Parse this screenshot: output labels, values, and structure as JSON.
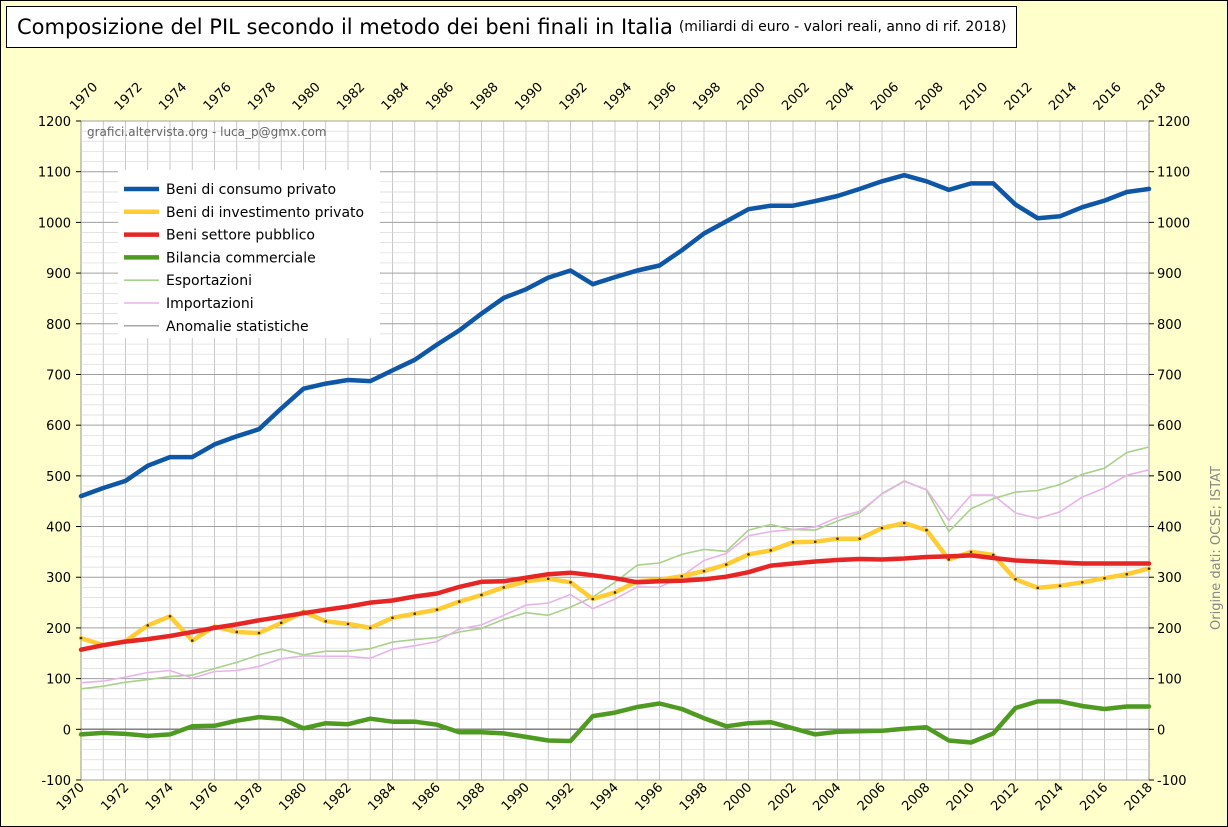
{
  "title": {
    "main": "Composizione del PIL secondo il metodo dei beni finali in Italia",
    "sub": "(miliardi di euro - valori reali, anno di rif. 2018)"
  },
  "watermark": "grafici.altervista.org - luca_p@gmx.com",
  "source": "Origine dati: OCSE; ISTAT",
  "chart_data": {
    "type": "line",
    "x": [
      1970,
      1971,
      1972,
      1973,
      1974,
      1975,
      1976,
      1977,
      1978,
      1979,
      1980,
      1981,
      1982,
      1983,
      1984,
      1985,
      1986,
      1987,
      1988,
      1989,
      1990,
      1991,
      1992,
      1993,
      1994,
      1995,
      1996,
      1997,
      1998,
      1999,
      2000,
      2001,
      2002,
      2003,
      2004,
      2005,
      2006,
      2007,
      2008,
      2009,
      2010,
      2011,
      2012,
      2013,
      2014,
      2015,
      2016,
      2017,
      2018
    ],
    "x_tick_labels": [
      "1970",
      "1972",
      "1974",
      "1976",
      "1978",
      "1980",
      "1982",
      "1984",
      "1986",
      "1988",
      "1990",
      "1992",
      "1994",
      "1996",
      "1998",
      "2000",
      "2002",
      "2004",
      "2006",
      "2008",
      "2010",
      "2012",
      "2014",
      "2016",
      "2018"
    ],
    "y_ticks": [
      -100,
      0,
      100,
      200,
      300,
      400,
      500,
      600,
      700,
      800,
      900,
      1000,
      1100,
      1200
    ],
    "ylim": [
      -100,
      1200
    ],
    "xlim": [
      1970,
      2018
    ],
    "grid": true,
    "legend_position": "top-left",
    "series": [
      {
        "name": "Beni di consumo privato",
        "color": "#0e56a6",
        "width": 4.5,
        "dots": false,
        "values": [
          460,
          476,
          490,
          520,
          537,
          537,
          562,
          578,
          592,
          633,
          672,
          682,
          689,
          687,
          708,
          729,
          759,
          787,
          820,
          851,
          868,
          891,
          905,
          878,
          892,
          905,
          915,
          945,
          978,
          1002,
          1026,
          1033,
          1033,
          1042,
          1052,
          1066,
          1081,
          1093,
          1081,
          1064,
          1077,
          1077,
          1035,
          1008,
          1012,
          1030,
          1043,
          1060,
          1066
        ]
      },
      {
        "name": "Beni di investimento privato",
        "color": "#ffcc33",
        "width": 4.5,
        "dots": true,
        "values": [
          180,
          166,
          174,
          205,
          223,
          175,
          203,
          192,
          190,
          210,
          232,
          213,
          208,
          200,
          220,
          228,
          236,
          252,
          265,
          280,
          292,
          297,
          290,
          257,
          270,
          292,
          295,
          302,
          312,
          325,
          345,
          353,
          369,
          370,
          376,
          376,
          397,
          407,
          393,
          335,
          350,
          344,
          296,
          279,
          283,
          290,
          298,
          306,
          317
        ]
      },
      {
        "name": "Beni settore pubblico",
        "color": "#e62525",
        "width": 4.5,
        "dots": false,
        "values": [
          157,
          166,
          173,
          178,
          184,
          192,
          200,
          207,
          215,
          222,
          229,
          236,
          242,
          250,
          254,
          262,
          268,
          281,
          291,
          292,
          299,
          306,
          309,
          304,
          298,
          290,
          292,
          293,
          296,
          301,
          310,
          323,
          327,
          331,
          334,
          336,
          335,
          337,
          340,
          341,
          343,
          338,
          333,
          331,
          329,
          327,
          327,
          327,
          327
        ]
      },
      {
        "name": "Bilancia commerciale",
        "color": "#4f9b21",
        "width": 4.5,
        "dots": false,
        "values": [
          -10,
          -7,
          -9,
          -13,
          -10,
          6,
          7,
          17,
          24,
          21,
          2,
          12,
          10,
          21,
          15,
          15,
          9,
          -6,
          -6,
          -8,
          -15,
          -22,
          -23,
          26,
          33,
          44,
          51,
          40,
          22,
          6,
          12,
          14,
          2,
          -10,
          -5,
          -4,
          -3,
          1,
          4,
          -22,
          -26,
          -8,
          42,
          55,
          55,
          46,
          40,
          45,
          45
        ]
      },
      {
        "name": "Esportazioni",
        "color": "#a8d18b",
        "width": 1.6,
        "dots": false,
        "values": [
          80,
          85,
          93,
          98,
          104,
          107,
          120,
          132,
          147,
          158,
          147,
          154,
          154,
          159,
          172,
          177,
          181,
          192,
          199,
          217,
          230,
          225,
          241,
          261,
          290,
          324,
          328,
          345,
          355,
          351,
          393,
          404,
          394,
          393,
          411,
          427,
          465,
          490,
          472,
          390,
          435,
          455,
          468,
          471,
          483,
          503,
          515,
          546,
          557
        ]
      },
      {
        "name": "Importazioni",
        "color": "#e7b4e7",
        "width": 1.6,
        "dots": false,
        "values": [
          92,
          95,
          103,
          112,
          116,
          101,
          114,
          116,
          124,
          139,
          145,
          144,
          144,
          140,
          158,
          165,
          173,
          198,
          206,
          225,
          245,
          249,
          266,
          238,
          257,
          281,
          280,
          302,
          333,
          347,
          382,
          390,
          394,
          399,
          418,
          430,
          464,
          489,
          473,
          412,
          462,
          462,
          427,
          416,
          429,
          458,
          476,
          501,
          512
        ]
      },
      {
        "name": "Anomalie statistiche",
        "color": "#888888",
        "width": 1.2,
        "dots": false,
        "values": [
          0,
          0,
          0,
          0,
          0,
          0,
          0,
          0,
          0,
          0,
          0,
          0,
          0,
          0,
          0,
          0,
          0,
          0,
          0,
          0,
          0,
          0,
          0,
          0,
          0,
          0,
          0,
          0,
          0,
          0,
          0,
          0,
          0,
          0,
          0,
          0,
          0,
          0,
          0,
          0,
          0,
          0,
          0,
          0,
          0,
          0,
          0,
          0,
          0
        ]
      }
    ]
  }
}
